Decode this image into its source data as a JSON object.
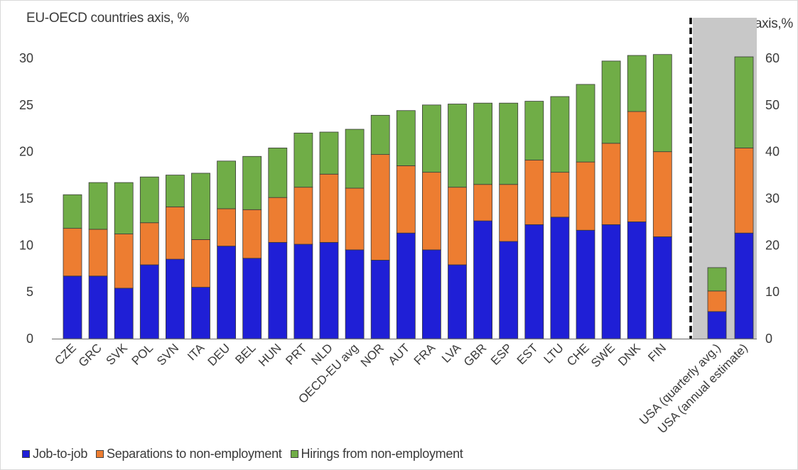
{
  "chart_data": {
    "type": "bar",
    "stacked": true,
    "left_axis_label": "EU-OECD countries axis, %",
    "right_axis_label": "USA axis,%",
    "left_ylim": [
      0,
      30
    ],
    "left_ticks": [
      0,
      5,
      10,
      15,
      20,
      25,
      30
    ],
    "right_ylim": [
      0,
      60
    ],
    "right_ticks": [
      0,
      10,
      20,
      30,
      40,
      50,
      60
    ],
    "grid": false,
    "legend_position": "bottom-left",
    "series": [
      {
        "name": "Job-to-job",
        "color": "#1f1fd6"
      },
      {
        "name": "Separations to non-employment",
        "color": "#ed7d31"
      },
      {
        "name": "Hirings from non-employment",
        "color": "#70ad47"
      }
    ],
    "categories": [
      "CZE",
      "GRC",
      "SVK",
      "POL",
      "SVN",
      "ITA",
      "DEU",
      "BEL",
      "HUN",
      "PRT",
      "NLD",
      "OECD-EU avg",
      "NOR",
      "AUT",
      "FRA",
      "LVA",
      "GBR",
      "ESP",
      "EST",
      "LTU",
      "CHE",
      "SWE",
      "DNK",
      "FIN"
    ],
    "values": {
      "Job-to-job": [
        6.7,
        6.7,
        5.4,
        7.9,
        8.5,
        5.5,
        9.9,
        8.6,
        10.3,
        10.1,
        10.3,
        9.5,
        8.4,
        11.3,
        9.5,
        7.9,
        12.6,
        10.4,
        12.2,
        13.0,
        11.6,
        12.2,
        12.5,
        10.9
      ],
      "Separations to non-employment": [
        5.1,
        5.0,
        5.8,
        4.5,
        5.6,
        5.1,
        4.0,
        5.2,
        4.8,
        6.1,
        7.3,
        6.6,
        11.3,
        7.2,
        8.3,
        8.3,
        3.9,
        6.1,
        6.9,
        4.8,
        7.3,
        8.7,
        11.8,
        9.1
      ],
      "Hirings from non-employment": [
        3.6,
        5.0,
        5.5,
        4.9,
        3.4,
        7.1,
        5.1,
        5.7,
        5.3,
        5.8,
        4.5,
        6.3,
        4.2,
        5.9,
        7.2,
        8.9,
        8.7,
        8.7,
        6.3,
        8.1,
        8.3,
        8.8,
        6.0,
        10.4
      ]
    },
    "usa_categories": [
      "USA (quarterly avg.)",
      "USA (annual estimate)"
    ],
    "usa_values": {
      "Job-to-job": [
        5.8,
        22.6
      ],
      "Separations to non-employment": [
        4.4,
        18.2
      ],
      "Hirings from non-employment": [
        5.0,
        19.5
      ]
    }
  }
}
